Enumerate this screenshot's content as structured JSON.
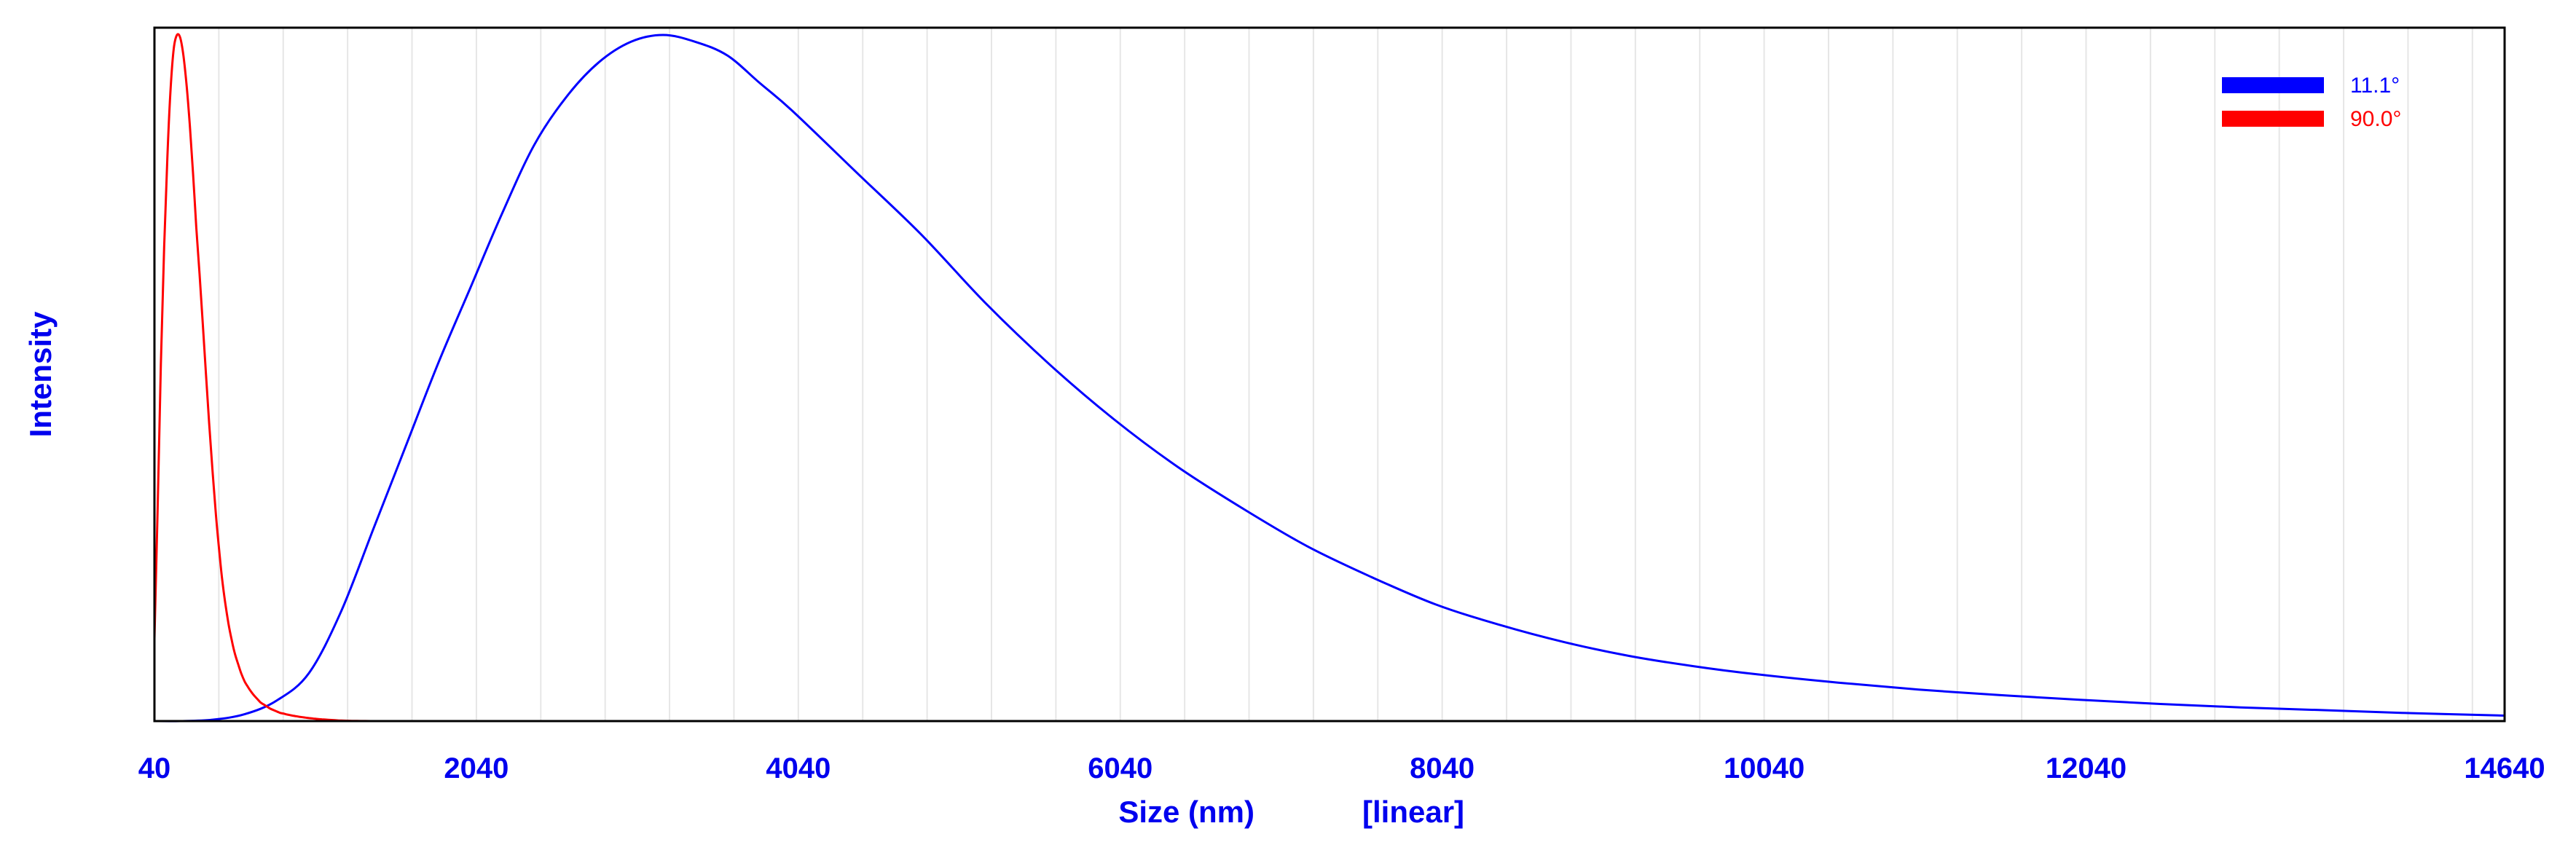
{
  "chart_data": {
    "type": "line",
    "xlabel": "Size (nm)",
    "xscale_label": "[linear]",
    "ylabel": "Intensity",
    "xlim": [
      40,
      14640
    ],
    "ylim": [
      0,
      1
    ],
    "x_ticks": [
      "40",
      "2040",
      "4040",
      "6040",
      "8040",
      "10040",
      "12040",
      "14640"
    ],
    "grid": "vertical minor gridlines",
    "legend_position": "top-right",
    "colors": {
      "axis_text": "#0000ee",
      "frame": "#000000",
      "grid": "#e6e6e6"
    },
    "series": [
      {
        "name": "11.1°",
        "color": "#0000ff",
        "x": [
          40,
          200,
          400,
          600,
          800,
          1000,
          1200,
          1400,
          1600,
          1800,
          2000,
          2200,
          2400,
          2600,
          2800,
          3000,
          3200,
          3400,
          3600,
          3800,
          4000,
          4400,
          4800,
          5200,
          5600,
          6000,
          6400,
          6800,
          7200,
          7600,
          8000,
          8400,
          8800,
          9200,
          9600,
          10000,
          10500,
          11000,
          11500,
          12000,
          12500,
          13000,
          13500,
          14000,
          14640
        ],
        "y": [
          0.0,
          0.0,
          0.002,
          0.01,
          0.03,
          0.07,
          0.16,
          0.28,
          0.4,
          0.52,
          0.63,
          0.74,
          0.84,
          0.91,
          0.96,
          0.99,
          1.0,
          0.99,
          0.97,
          0.93,
          0.89,
          0.8,
          0.71,
          0.61,
          0.52,
          0.44,
          0.37,
          0.31,
          0.255,
          0.21,
          0.17,
          0.14,
          0.115,
          0.095,
          0.08,
          0.068,
          0.056,
          0.046,
          0.038,
          0.031,
          0.025,
          0.02,
          0.016,
          0.012,
          0.008
        ]
      },
      {
        "name": "90.0°",
        "color": "#ff0000",
        "x": [
          40,
          60,
          80,
          100,
          120,
          140,
          160,
          180,
          200,
          220,
          240,
          260,
          280,
          300,
          320,
          340,
          360,
          380,
          400,
          420,
          440,
          460,
          480,
          500,
          520,
          540,
          560,
          580,
          600,
          620,
          640,
          660,
          680,
          700,
          720,
          740,
          760,
          780,
          800,
          820,
          840,
          860,
          880,
          900,
          920,
          940,
          960,
          980,
          1000,
          1020,
          1040,
          1060,
          1080,
          1100,
          1120,
          1140,
          1160,
          1180,
          1200,
          1250,
          1300,
          1350,
          1400,
          1450,
          1500,
          1600,
          1700,
          1800,
          1900,
          2000,
          2200,
          2500,
          3000,
          4000,
          14640
        ],
        "y": [
          0.12,
          0.31,
          0.52,
          0.69,
          0.82,
          0.92,
          0.98,
          1.0,
          0.996,
          0.97,
          0.926,
          0.868,
          0.798,
          0.72,
          0.652,
          0.58,
          0.506,
          0.434,
          0.368,
          0.306,
          0.254,
          0.208,
          0.172,
          0.142,
          0.118,
          0.098,
          0.083,
          0.069,
          0.058,
          0.05,
          0.043,
          0.037,
          0.032,
          0.027,
          0.024,
          0.021,
          0.018,
          0.016,
          0.014,
          0.012,
          0.011,
          0.0098,
          0.0088,
          0.0079,
          0.0071,
          0.0063,
          0.0056,
          0.005,
          0.0044,
          0.0039,
          0.0034,
          0.003,
          0.0026,
          0.0022,
          0.0019,
          0.0016,
          0.0013,
          0.001,
          0.0007,
          0.0004,
          0.0002,
          0.0001,
          0.0,
          0.0,
          0.0,
          0.0,
          0.0,
          0.0,
          0.0,
          0.0,
          0.0,
          0.0,
          0.0,
          0.0,
          0.0
        ]
      }
    ]
  }
}
